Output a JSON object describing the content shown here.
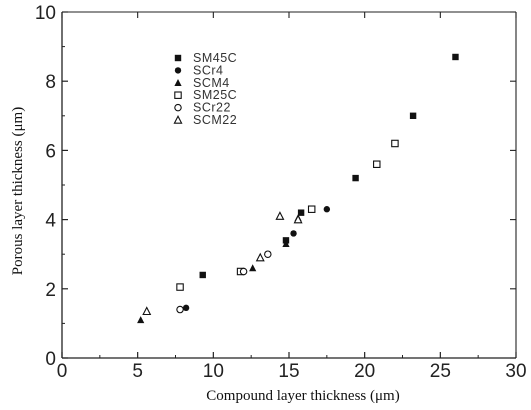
{
  "chart_data": {
    "type": "scatter",
    "title": "",
    "xlabel": "Compound layer thickness (μm)",
    "ylabel": "Porous layer thickness (μm)",
    "xlim": [
      0,
      30
    ],
    "ylim": [
      0,
      10
    ],
    "x_ticks": [
      "0",
      "5",
      "10",
      "15",
      "20",
      "25",
      "30"
    ],
    "y_ticks": [
      "0",
      "2",
      "4",
      "6",
      "8",
      "10"
    ],
    "grid": false,
    "legend_position": "top-left",
    "series": [
      {
        "name": "SM45C",
        "marker": "filled-square",
        "x": [
          9.3,
          14.8,
          15.8,
          19.4,
          23.2,
          26.0
        ],
        "y": [
          2.4,
          3.4,
          4.2,
          5.2,
          7.0,
          8.7
        ]
      },
      {
        "name": "SCr4",
        "marker": "filled-circle",
        "x": [
          8.2,
          12.0,
          15.3,
          17.5
        ],
        "y": [
          1.45,
          2.5,
          3.6,
          4.3
        ]
      },
      {
        "name": "SCM4",
        "marker": "filled-triangle",
        "x": [
          5.2,
          12.6,
          14.8,
          15.6
        ],
        "y": [
          1.1,
          2.6,
          3.3,
          4.05
        ]
      },
      {
        "name": "SM25C",
        "marker": "open-square",
        "x": [
          7.8,
          11.8,
          16.5,
          20.8,
          22.0
        ],
        "y": [
          2.05,
          2.5,
          4.3,
          5.6,
          6.2
        ]
      },
      {
        "name": "SCr22",
        "marker": "open-circle",
        "x": [
          7.8,
          12.0,
          13.6
        ],
        "y": [
          1.4,
          2.5,
          3.0
        ]
      },
      {
        "name": "SCM22",
        "marker": "open-triangle",
        "x": [
          5.6,
          13.1,
          14.4,
          15.6
        ],
        "y": [
          1.35,
          2.9,
          4.1,
          4.0
        ]
      }
    ],
    "colors": {
      "ink": "#111111",
      "axis": "#222222"
    }
  }
}
